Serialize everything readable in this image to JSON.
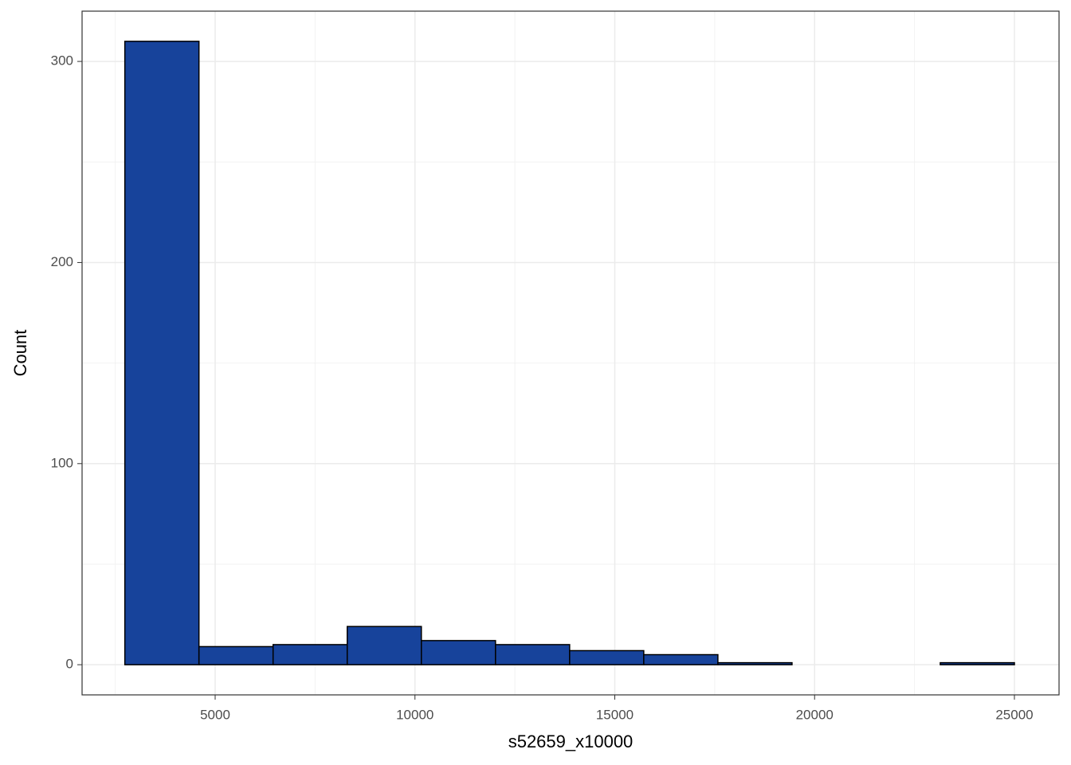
{
  "chart_data": {
    "type": "histogram",
    "xlabel": "s52659_x10000",
    "ylabel": "Count",
    "bins": [
      2740,
      4595,
      6450,
      8305,
      10160,
      12015,
      13870,
      15725,
      17580,
      19435,
      21290,
      23145,
      25000
    ],
    "values": [
      310,
      9,
      10,
      19,
      12,
      10,
      7,
      5,
      1,
      0,
      0,
      1
    ],
    "color": "#17439b",
    "edgecolor": "#000000",
    "xlim": [
      1670,
      26117
    ],
    "ylim": [
      -15,
      325
    ],
    "xticks": [
      5000,
      10000,
      15000,
      20000,
      25000
    ],
    "yticks": [
      0,
      100,
      200,
      300
    ],
    "x_minor_ticks": [
      2500,
      7500,
      12500,
      17500,
      22500
    ],
    "y_minor_ticks": [
      50,
      150,
      250
    ],
    "grid": true
  }
}
